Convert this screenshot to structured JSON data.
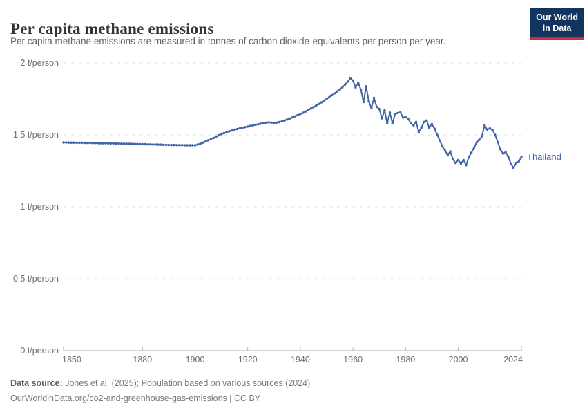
{
  "header": {
    "title": "Per capita methane emissions",
    "subtitle": "Per capita methane emissions are measured in tonnes of carbon dioxide-equivalents per person per year."
  },
  "logo": {
    "line1": "Our World",
    "line2": "in Data",
    "bg_color": "#12355f",
    "accent_color": "#d0293a"
  },
  "footer": {
    "label": "Data source:",
    "sources": " Jones et al. (2025); Population based on various sources (2024)",
    "note": "OurWorldinData.org/co2-and-greenhouse-gas-emissions | CC BY"
  },
  "chart_data": {
    "type": "line",
    "title": "Per capita methane emissions",
    "unit": "t/person",
    "xlim": [
      1850,
      2024
    ],
    "ylim": [
      0,
      2
    ],
    "grid": "horizontal-dashed",
    "x_ticks": [
      1850,
      1880,
      1900,
      1920,
      1940,
      1960,
      1980,
      2000,
      2024
    ],
    "y_ticks": [
      {
        "value": 0,
        "label": "0 t/person"
      },
      {
        "value": 0.5,
        "label": "0.5 t/person"
      },
      {
        "value": 1,
        "label": "1 t/person"
      },
      {
        "value": 1.5,
        "label": "1.5 t/person"
      },
      {
        "value": 2,
        "label": "2 t/person"
      }
    ],
    "series": [
      {
        "name": "Thailand",
        "color": "#4064a4",
        "x": [
          1850,
          1851,
          1852,
          1853,
          1854,
          1855,
          1856,
          1857,
          1858,
          1859,
          1860,
          1861,
          1862,
          1863,
          1864,
          1865,
          1866,
          1867,
          1868,
          1869,
          1870,
          1871,
          1872,
          1873,
          1874,
          1875,
          1876,
          1877,
          1878,
          1879,
          1880,
          1881,
          1882,
          1883,
          1884,
          1885,
          1886,
          1887,
          1888,
          1889,
          1890,
          1891,
          1892,
          1893,
          1894,
          1895,
          1896,
          1897,
          1898,
          1899,
          1900,
          1901,
          1902,
          1903,
          1904,
          1905,
          1906,
          1907,
          1908,
          1909,
          1910,
          1911,
          1912,
          1913,
          1914,
          1915,
          1916,
          1917,
          1918,
          1919,
          1920,
          1921,
          1922,
          1923,
          1924,
          1925,
          1926,
          1927,
          1928,
          1929,
          1930,
          1931,
          1932,
          1933,
          1934,
          1935,
          1936,
          1937,
          1938,
          1939,
          1940,
          1941,
          1942,
          1943,
          1944,
          1945,
          1946,
          1947,
          1948,
          1949,
          1950,
          1951,
          1952,
          1953,
          1954,
          1955,
          1956,
          1957,
          1958,
          1959,
          1960,
          1961,
          1962,
          1963,
          1964,
          1965,
          1966,
          1967,
          1968,
          1969,
          1970,
          1971,
          1972,
          1973,
          1974,
          1975,
          1976,
          1977,
          1978,
          1979,
          1980,
          1981,
          1982,
          1983,
          1984,
          1985,
          1986,
          1987,
          1988,
          1989,
          1990,
          1991,
          1992,
          1993,
          1994,
          1995,
          1996,
          1997,
          1998,
          1999,
          2000,
          2001,
          2002,
          2003,
          2004,
          2005,
          2006,
          2007,
          2008,
          2009,
          2010,
          2011,
          2012,
          2013,
          2014,
          2015,
          2016,
          2017,
          2018,
          2019,
          2020,
          2021,
          2022,
          2023,
          2024
        ],
        "values": [
          1.447,
          1.447,
          1.446,
          1.446,
          1.446,
          1.445,
          1.445,
          1.445,
          1.444,
          1.444,
          1.444,
          1.443,
          1.443,
          1.443,
          1.442,
          1.442,
          1.442,
          1.441,
          1.441,
          1.441,
          1.44,
          1.44,
          1.439,
          1.439,
          1.438,
          1.438,
          1.437,
          1.437,
          1.436,
          1.436,
          1.435,
          1.435,
          1.434,
          1.434,
          1.433,
          1.433,
          1.432,
          1.432,
          1.431,
          1.431,
          1.43,
          1.43,
          1.43,
          1.429,
          1.429,
          1.429,
          1.428,
          1.428,
          1.428,
          1.428,
          1.428,
          1.433,
          1.439,
          1.446,
          1.454,
          1.462,
          1.47,
          1.479,
          1.488,
          1.497,
          1.505,
          1.512,
          1.519,
          1.525,
          1.531,
          1.536,
          1.541,
          1.546,
          1.55,
          1.554,
          1.558,
          1.562,
          1.566,
          1.57,
          1.574,
          1.578,
          1.581,
          1.584,
          1.587,
          1.585,
          1.582,
          1.585,
          1.589,
          1.594,
          1.6,
          1.607,
          1.614,
          1.621,
          1.629,
          1.637,
          1.645,
          1.654,
          1.663,
          1.673,
          1.683,
          1.693,
          1.704,
          1.715,
          1.726,
          1.738,
          1.75,
          1.763,
          1.776,
          1.789,
          1.802,
          1.816,
          1.832,
          1.85,
          1.87,
          1.893,
          1.878,
          1.83,
          1.862,
          1.814,
          1.728,
          1.838,
          1.733,
          1.687,
          1.757,
          1.695,
          1.68,
          1.615,
          1.67,
          1.58,
          1.655,
          1.58,
          1.645,
          1.652,
          1.657,
          1.62,
          1.625,
          1.61,
          1.58,
          1.566,
          1.59,
          1.52,
          1.55,
          1.59,
          1.6,
          1.55,
          1.575,
          1.543,
          1.5,
          1.46,
          1.42,
          1.39,
          1.36,
          1.385,
          1.33,
          1.305,
          1.325,
          1.3,
          1.325,
          1.29,
          1.345,
          1.376,
          1.41,
          1.448,
          1.466,
          1.49,
          1.567,
          1.537,
          1.545,
          1.535,
          1.5,
          1.45,
          1.4,
          1.37,
          1.38,
          1.35,
          1.3,
          1.27,
          1.305,
          1.315,
          1.345
        ]
      }
    ],
    "legend_position": "end-of-line-label",
    "colors": {
      "gridline": "#e0e0e0",
      "axis": "#a5a5a5",
      "tick": "#b5b5b5",
      "axis_text": "#6d6d6d"
    }
  }
}
